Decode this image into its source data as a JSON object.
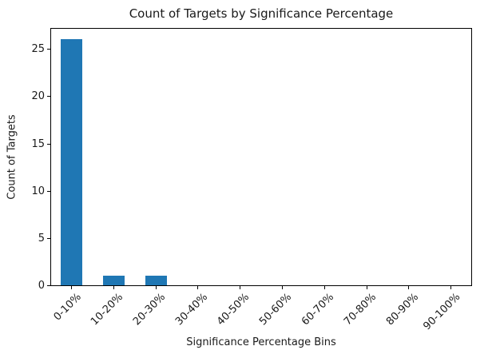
{
  "chart_data": {
    "type": "bar",
    "title": "Count of Targets by Significance Percentage",
    "xlabel": "Significance Percentage Bins",
    "ylabel": "Count of Targets",
    "categories": [
      "0-10%",
      "10-20%",
      "20-30%",
      "30-40%",
      "40-50%",
      "50-60%",
      "60-70%",
      "70-80%",
      "80-90%",
      "90-100%"
    ],
    "values": [
      26,
      1,
      1,
      0,
      0,
      0,
      0,
      0,
      0,
      0
    ],
    "yticks": [
      0,
      5,
      10,
      15,
      20,
      25
    ],
    "ylim": [
      0,
      27.3
    ],
    "bar_color": "#1f77b4",
    "spine_color": "#000000",
    "text_color": "#1a1a1a",
    "grid": false,
    "legend": null,
    "x_tick_rotation_deg": 45
  }
}
